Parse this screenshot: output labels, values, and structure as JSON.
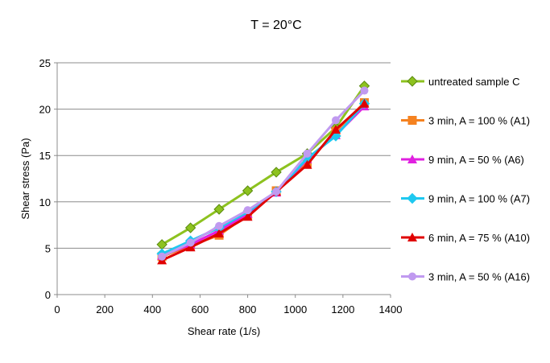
{
  "chart_data": {
    "type": "line",
    "title": "T = 20°C",
    "xlabel": "Shear rate (1/s)",
    "ylabel": "Shear stress (Pa)",
    "xlim": [
      0,
      1400
    ],
    "ylim": [
      0,
      25
    ],
    "xticks": [
      "0",
      "200",
      "400",
      "600",
      "800",
      "1000",
      "1200",
      "1400"
    ],
    "yticks": [
      "0",
      "5",
      "10",
      "15",
      "20",
      "25"
    ],
    "grid": "horizontal",
    "legend": "right",
    "series": [
      {
        "name": "untreated sample C",
        "color": "#8DC21F",
        "marker": "diamond",
        "x": [
          440,
          560,
          680,
          800,
          920,
          1050,
          1170,
          1290
        ],
        "y": [
          5.4,
          7.2,
          9.2,
          11.2,
          13.2,
          15.2,
          18.0,
          22.5
        ]
      },
      {
        "name": "3 min, A = 100 % (A1)",
        "color": "#F58220",
        "marker": "square",
        "x": [
          440,
          560,
          680,
          800,
          920,
          1050,
          1170,
          1290
        ],
        "y": [
          4.1,
          5.3,
          6.4,
          8.6,
          11.2,
          14.2,
          17.6,
          20.7
        ]
      },
      {
        "name": "9 min, A = 50 % (A6)",
        "color": "#E020E0",
        "marker": "triangle",
        "x": [
          440,
          560,
          680,
          800,
          920,
          1050,
          1170,
          1290
        ],
        "y": [
          4.2,
          5.4,
          6.9,
          8.7,
          11.0,
          14.6,
          17.2,
          20.3
        ]
      },
      {
        "name": "9 min, A = 100 % (A7)",
        "color": "#1EC8F0",
        "marker": "diamond",
        "x": [
          440,
          560,
          680,
          800,
          920,
          1050,
          1170,
          1290
        ],
        "y": [
          4.4,
          5.8,
          7.2,
          8.9,
          11.1,
          14.7,
          17.1,
          20.6
        ]
      },
      {
        "name": "6 min, A = 75 % (A10)",
        "color": "#E00000",
        "marker": "triangle",
        "x": [
          440,
          560,
          680,
          800,
          920,
          1050,
          1170,
          1290
        ],
        "y": [
          3.7,
          5.1,
          6.6,
          8.4,
          11.1,
          14.0,
          17.8,
          20.6
        ]
      },
      {
        "name": "3 min, A = 50 % (A16)",
        "color": "#C09AF0",
        "marker": "circle",
        "x": [
          440,
          560,
          680,
          800,
          920,
          1050,
          1170,
          1290
        ],
        "y": [
          4.1,
          5.6,
          7.4,
          9.1,
          11.1,
          15.2,
          18.8,
          22.0
        ]
      }
    ]
  }
}
